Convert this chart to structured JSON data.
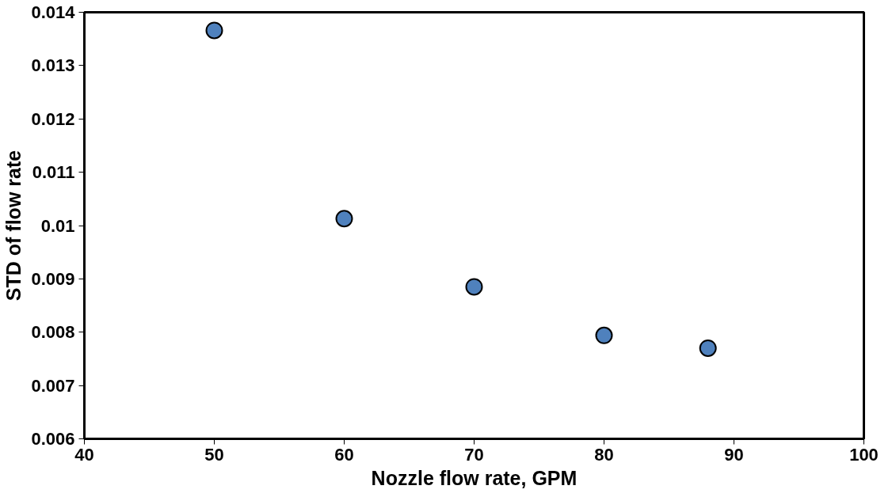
{
  "chart_data": {
    "type": "scatter",
    "xlabel": "Nozzle flow rate, GPM",
    "ylabel": "STD of flow rate",
    "x": [
      50,
      60,
      70,
      80,
      88
    ],
    "series": [
      {
        "color": "#4f81bd",
        "values": [
          0.01366,
          0.01013,
          0.00885,
          0.00794,
          0.0077
        ]
      }
    ],
    "xlim": [
      40,
      100
    ],
    "xticks": [
      40,
      50,
      60,
      70,
      80,
      90,
      100
    ],
    "ylim": [
      0.006,
      0.014
    ],
    "yticks": [
      0.006,
      0.007,
      0.008,
      0.009,
      0.01,
      0.011,
      0.012,
      0.013,
      0.014
    ],
    "marker": "circle"
  }
}
